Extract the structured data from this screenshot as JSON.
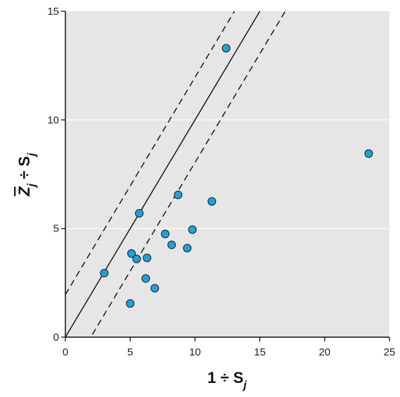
{
  "chart_data": {
    "type": "scatter",
    "xlabel": "1 ÷ S",
    "xlabel_sub": "j",
    "ylabel_z": "Z",
    "ylabel_sub1": "j",
    "ylabel_mid": " ÷ S",
    "ylabel_sub2": "j",
    "xlim": [
      0,
      25
    ],
    "ylim": [
      0,
      15
    ],
    "xticks": [
      0,
      5,
      10,
      15,
      20,
      25
    ],
    "yticks": [
      0,
      5,
      10,
      15
    ],
    "grid": "horizontal",
    "background": "#e6e6e6",
    "point_color": "#1aa3e0",
    "points": [
      {
        "x": 3.0,
        "y": 2.95
      },
      {
        "x": 5.0,
        "y": 1.55
      },
      {
        "x": 5.1,
        "y": 3.85
      },
      {
        "x": 5.5,
        "y": 3.6
      },
      {
        "x": 5.7,
        "y": 5.7
      },
      {
        "x": 6.2,
        "y": 2.7
      },
      {
        "x": 6.3,
        "y": 3.65
      },
      {
        "x": 6.9,
        "y": 2.25
      },
      {
        "x": 7.7,
        "y": 4.75
      },
      {
        "x": 8.2,
        "y": 4.25
      },
      {
        "x": 8.7,
        "y": 6.55
      },
      {
        "x": 9.4,
        "y": 4.1
      },
      {
        "x": 9.8,
        "y": 4.95
      },
      {
        "x": 11.3,
        "y": 6.25
      },
      {
        "x": 12.4,
        "y": 13.3
      },
      {
        "x": 23.4,
        "y": 8.45
      }
    ],
    "lines": [
      {
        "style": "solid",
        "intercept": 0,
        "slope": 1
      },
      {
        "style": "dashed",
        "intercept": 1.96,
        "slope": 1
      },
      {
        "style": "dashed",
        "intercept": -1.96,
        "slope": 1
      }
    ]
  }
}
